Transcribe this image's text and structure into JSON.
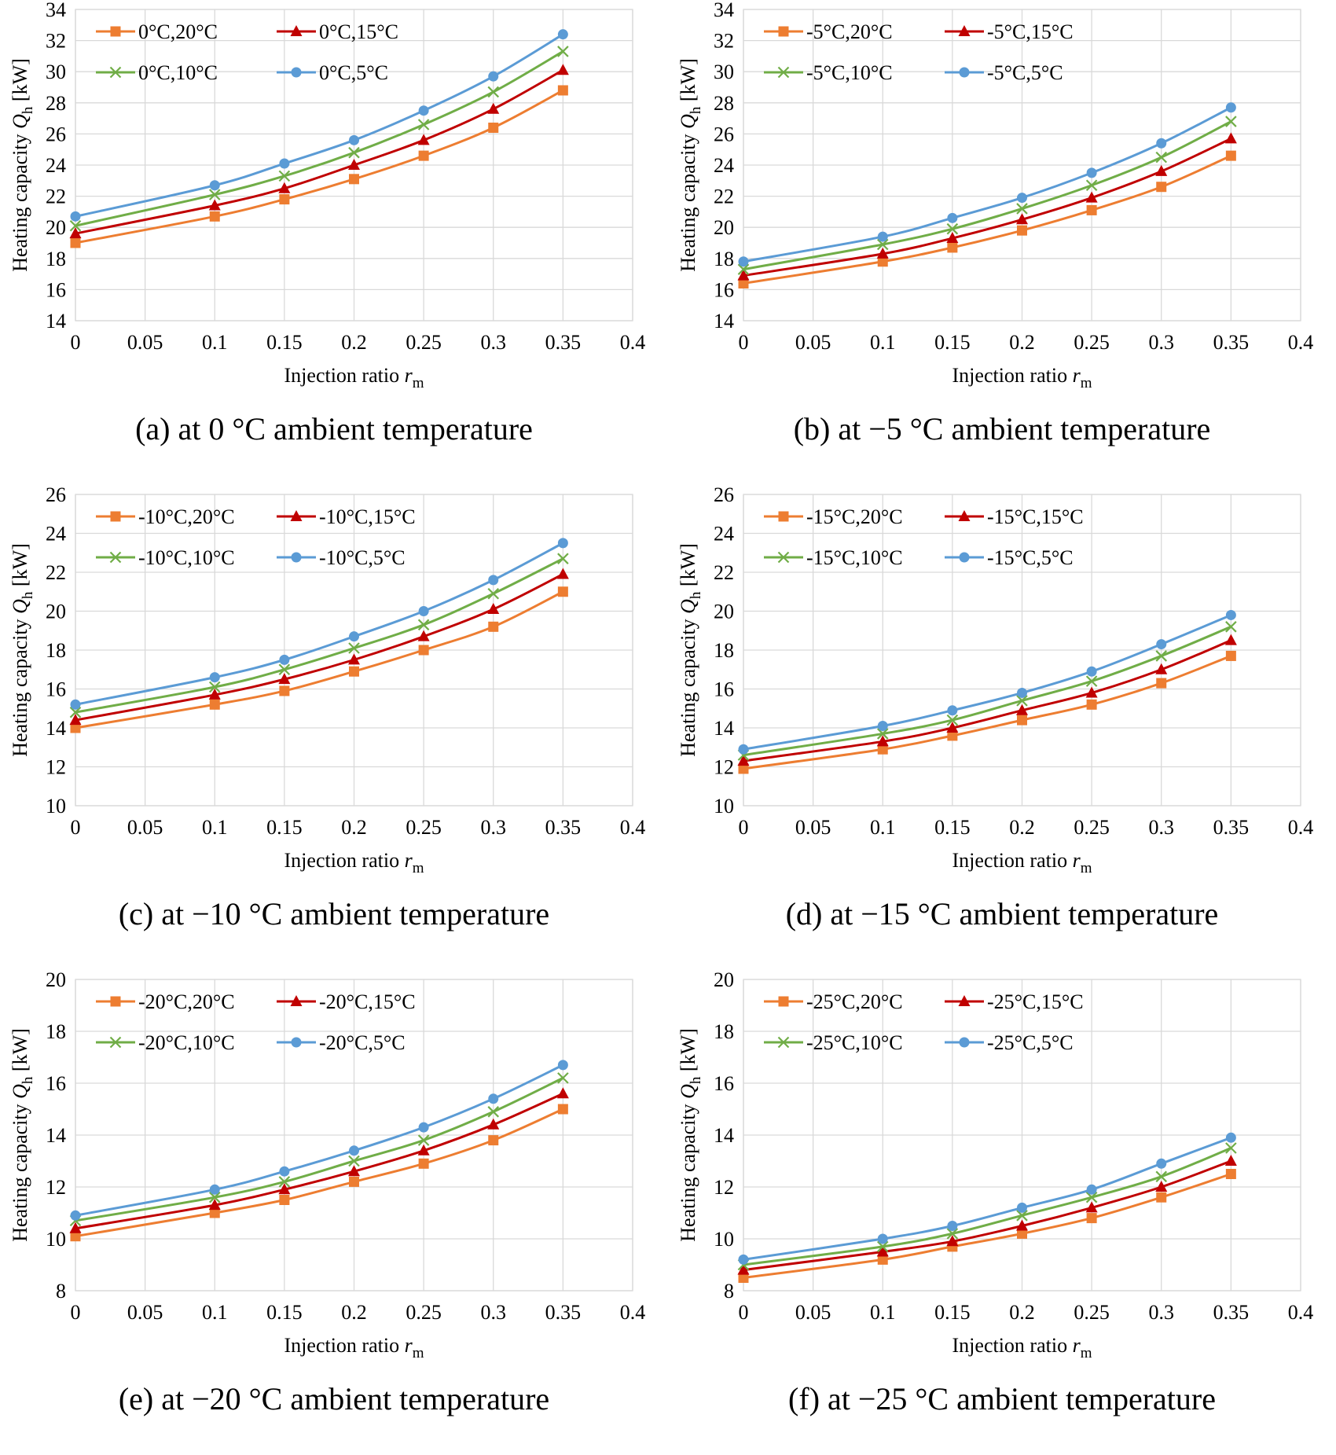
{
  "styles": {
    "colors": [
      "#ED7D31",
      "#C00000",
      "#70AD47",
      "#5B9BD5"
    ],
    "markers": [
      "square",
      "triangle",
      "x-cross",
      "circle"
    ],
    "grid": true,
    "legend_position": "top-left"
  },
  "chart_data": [
    {
      "type": "line",
      "caption": "(a) at 0 °C ambient temperature",
      "xlabel": "Injection ratio",
      "xlabel_symbol": "r",
      "xlabel_sub": "m",
      "ylabel_prefix": "Heating  capacity",
      "ylabel_symbol": "Q",
      "ylabel_sub": "h",
      "ylabel_unit": "[kW]",
      "xlim": [
        0,
        0.4
      ],
      "xticks": [
        "0",
        "0.05",
        "0.1",
        "0.15",
        "0.2",
        "0.25",
        "0.3",
        "0.35",
        "0.4"
      ],
      "ylim": [
        14,
        34
      ],
      "yticks": [
        "14",
        "16",
        "18",
        "20",
        "22",
        "24",
        "26",
        "28",
        "30",
        "32",
        "34"
      ],
      "x": [
        0,
        0.1,
        0.15,
        0.2,
        0.25,
        0.3,
        0.35
      ],
      "series": [
        {
          "name": "0°C,20°C",
          "values": [
            19.0,
            20.7,
            21.8,
            23.1,
            24.6,
            26.4,
            28.8
          ]
        },
        {
          "name": "0°C,15°C",
          "values": [
            19.6,
            21.4,
            22.5,
            24.0,
            25.6,
            27.6,
            30.1
          ]
        },
        {
          "name": "0°C,10°C",
          "values": [
            20.1,
            22.1,
            23.3,
            24.8,
            26.6,
            28.7,
            31.3
          ]
        },
        {
          "name": "0°C,5°C",
          "values": [
            20.7,
            22.7,
            24.1,
            25.6,
            27.5,
            29.7,
            32.4
          ]
        }
      ]
    },
    {
      "type": "line",
      "caption": "(b) at −5 °C ambient temperature",
      "xlabel": "Injection ratio",
      "xlabel_symbol": "r",
      "xlabel_sub": "m",
      "ylabel_prefix": "Heating  capacity",
      "ylabel_symbol": "Q",
      "ylabel_sub": "h",
      "ylabel_unit": "[kW]",
      "xlim": [
        0,
        0.4
      ],
      "xticks": [
        "0",
        "0.05",
        "0.1",
        "0.15",
        "0.2",
        "0.25",
        "0.3",
        "0.35",
        "0.4"
      ],
      "ylim": [
        14,
        34
      ],
      "yticks": [
        "14",
        "16",
        "18",
        "20",
        "22",
        "24",
        "26",
        "28",
        "30",
        "32",
        "34"
      ],
      "x": [
        0,
        0.1,
        0.15,
        0.2,
        0.25,
        0.3,
        0.35
      ],
      "series": [
        {
          "name": "-5°C,20°C",
          "values": [
            16.4,
            17.8,
            18.7,
            19.8,
            21.1,
            22.6,
            24.6
          ]
        },
        {
          "name": "-5°C,15°C",
          "values": [
            16.9,
            18.3,
            19.3,
            20.5,
            21.9,
            23.6,
            25.7
          ]
        },
        {
          "name": "-5°C,10°C",
          "values": [
            17.3,
            18.9,
            19.9,
            21.2,
            22.7,
            24.5,
            26.8
          ]
        },
        {
          "name": "-5°C,5°C",
          "values": [
            17.8,
            19.4,
            20.6,
            21.9,
            23.5,
            25.4,
            27.7
          ]
        }
      ]
    },
    {
      "type": "line",
      "caption": "(c) at −10 °C ambient temperature",
      "xlabel": "Injection ratio",
      "xlabel_symbol": "r",
      "xlabel_sub": "m",
      "ylabel_prefix": "Heating  capacity",
      "ylabel_symbol": "Q",
      "ylabel_sub": "h",
      "ylabel_unit": "[kW]",
      "xlim": [
        0,
        0.4
      ],
      "xticks": [
        "0",
        "0.05",
        "0.1",
        "0.15",
        "0.2",
        "0.25",
        "0.3",
        "0.35",
        "0.4"
      ],
      "ylim": [
        10,
        26
      ],
      "yticks": [
        "10",
        "12",
        "14",
        "16",
        "18",
        "20",
        "22",
        "24",
        "26"
      ],
      "x": [
        0,
        0.1,
        0.15,
        0.2,
        0.25,
        0.3,
        0.35
      ],
      "series": [
        {
          "name": "-10°C,20°C",
          "values": [
            14.0,
            15.2,
            15.9,
            16.9,
            18.0,
            19.2,
            21.0
          ]
        },
        {
          "name": "-10°C,15°C",
          "values": [
            14.4,
            15.7,
            16.5,
            17.5,
            18.7,
            20.1,
            21.9
          ]
        },
        {
          "name": "-10°C,10°C",
          "values": [
            14.8,
            16.1,
            17.0,
            18.1,
            19.3,
            20.9,
            22.7
          ]
        },
        {
          "name": "-10°C,5°C",
          "values": [
            15.2,
            16.6,
            17.5,
            18.7,
            20.0,
            21.6,
            23.5
          ]
        }
      ]
    },
    {
      "type": "line",
      "caption": "(d) at −15 °C ambient temperature",
      "xlabel": "Injection ratio",
      "xlabel_symbol": "r",
      "xlabel_sub": "m",
      "ylabel_prefix": "Heating  capacity",
      "ylabel_symbol": "Q",
      "ylabel_sub": "h",
      "ylabel_unit": "[kW]",
      "xlim": [
        0,
        0.4
      ],
      "xticks": [
        "0",
        "0.05",
        "0.1",
        "0.15",
        "0.2",
        "0.25",
        "0.3",
        "0.35",
        "0.4"
      ],
      "ylim": [
        10,
        26
      ],
      "yticks": [
        "10",
        "12",
        "14",
        "16",
        "18",
        "20",
        "22",
        "24",
        "26"
      ],
      "x": [
        0,
        0.1,
        0.15,
        0.2,
        0.25,
        0.3,
        0.35
      ],
      "series": [
        {
          "name": "-15°C,20°C",
          "values": [
            11.9,
            12.9,
            13.6,
            14.4,
            15.2,
            16.3,
            17.7
          ]
        },
        {
          "name": "-15°C,15°C",
          "values": [
            12.3,
            13.3,
            14.0,
            14.9,
            15.8,
            17.0,
            18.5
          ]
        },
        {
          "name": "-15°C,10°C",
          "values": [
            12.6,
            13.7,
            14.4,
            15.4,
            16.4,
            17.7,
            19.2
          ]
        },
        {
          "name": "-15°C,5°C",
          "values": [
            12.9,
            14.1,
            14.9,
            15.8,
            16.9,
            18.3,
            19.8
          ]
        }
      ]
    },
    {
      "type": "line",
      "caption": "(e) at −20 °C ambient temperature",
      "xlabel": "Injection ratio",
      "xlabel_symbol": "r",
      "xlabel_sub": "m",
      "ylabel_prefix": "Heating  capacity",
      "ylabel_symbol": "Q",
      "ylabel_sub": "h",
      "ylabel_unit": "[kW]",
      "xlim": [
        0,
        0.4
      ],
      "xticks": [
        "0",
        "0.05",
        "0.1",
        "0.15",
        "0.2",
        "0.25",
        "0.3",
        "0.35",
        "0.4"
      ],
      "ylim": [
        8,
        20
      ],
      "yticks": [
        "8",
        "10",
        "12",
        "14",
        "16",
        "18",
        "20"
      ],
      "x": [
        0,
        0.1,
        0.15,
        0.2,
        0.25,
        0.3,
        0.35
      ],
      "series": [
        {
          "name": "-20°C,20°C",
          "values": [
            10.1,
            11.0,
            11.5,
            12.2,
            12.9,
            13.8,
            15.0
          ]
        },
        {
          "name": "-20°C,15°C",
          "values": [
            10.4,
            11.3,
            11.9,
            12.6,
            13.4,
            14.4,
            15.6
          ]
        },
        {
          "name": "-20°C,10°C",
          "values": [
            10.7,
            11.6,
            12.2,
            13.0,
            13.8,
            14.9,
            16.2
          ]
        },
        {
          "name": "-20°C,5°C",
          "values": [
            10.9,
            11.9,
            12.6,
            13.4,
            14.3,
            15.4,
            16.7
          ]
        }
      ]
    },
    {
      "type": "line",
      "caption": "(f) at −25 °C ambient temperature",
      "xlabel": "Injection ratio",
      "xlabel_symbol": "r",
      "xlabel_sub": "m",
      "ylabel_prefix": "Heating  capacity",
      "ylabel_symbol": "Q",
      "ylabel_sub": "h",
      "ylabel_unit": "[kW]",
      "xlim": [
        0,
        0.4
      ],
      "xticks": [
        "0",
        "0.05",
        "0.1",
        "0.15",
        "0.2",
        "0.25",
        "0.3",
        "0.35",
        "0.4"
      ],
      "ylim": [
        8,
        20
      ],
      "yticks": [
        "8",
        "10",
        "12",
        "14",
        "16",
        "18",
        "20"
      ],
      "x": [
        0,
        0.1,
        0.15,
        0.2,
        0.25,
        0.3,
        0.35
      ],
      "series": [
        {
          "name": "-25°C,20°C",
          "values": [
            8.5,
            9.2,
            9.7,
            10.2,
            10.8,
            11.6,
            12.5
          ]
        },
        {
          "name": "-25°C,15°C",
          "values": [
            8.8,
            9.5,
            9.9,
            10.5,
            11.2,
            12.0,
            13.0
          ]
        },
        {
          "name": "-25°C,10°C",
          "values": [
            9.0,
            9.7,
            10.2,
            10.9,
            11.6,
            12.4,
            13.5
          ]
        },
        {
          "name": "-25°C,5°C",
          "values": [
            9.2,
            10.0,
            10.5,
            11.2,
            11.9,
            12.9,
            13.9
          ]
        }
      ]
    }
  ]
}
